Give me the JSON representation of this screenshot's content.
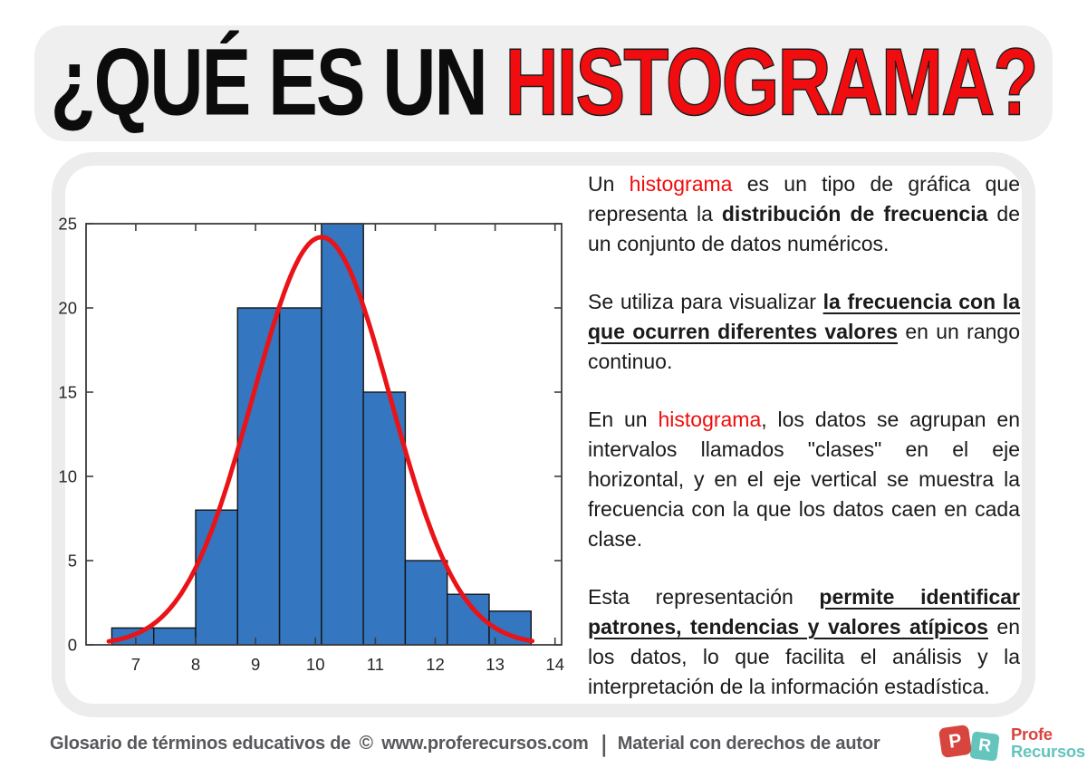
{
  "title": {
    "black_part": "¿QUÉ ES UN ",
    "red_part": "HISTOGRAMA?",
    "red_color": "#f10d0f"
  },
  "article": {
    "paragraphs": [
      {
        "runs": [
          {
            "t": "Un ",
            "s": "n"
          },
          {
            "t": "histograma",
            "s": "red"
          },
          {
            "t": " es un tipo de gráfica que representa la ",
            "s": "n"
          },
          {
            "t": "distribución de frecuencia",
            "s": "b"
          },
          {
            "t": " de un conjunto de datos numéricos.",
            "s": "n"
          }
        ]
      },
      {
        "runs": [
          {
            "t": "Se utiliza para visualizar ",
            "s": "n"
          },
          {
            "t": "la frecuencia con la que ocurren diferentes valores",
            "s": "bu"
          },
          {
            "t": " en un rango continuo.",
            "s": "n"
          }
        ]
      },
      {
        "runs": [
          {
            "t": "En un ",
            "s": "n"
          },
          {
            "t": "histograma",
            "s": "red"
          },
          {
            "t": ", los datos se agrupan en intervalos llamados \"clases\" en el eje horizontal, y en el eje vertical se muestra la frecuencia con la que los datos caen en cada clase.",
            "s": "n"
          }
        ]
      },
      {
        "runs": [
          {
            "t": "Esta representación ",
            "s": "n"
          },
          {
            "t": "permite identificar patrones, tendencias y valores atípicos",
            "s": "bu"
          },
          {
            "t": " en los datos, lo que facilita el análisis y la interpretación de la información estadística.",
            "s": "n"
          }
        ]
      }
    ],
    "red_word_color": "#f20a0a"
  },
  "chart_data": {
    "type": "bar",
    "subtype": "histogram-with-normal-curve",
    "title": "",
    "xlabel": "",
    "ylabel": "",
    "x_range": [
      6.17,
      14.11
    ],
    "y_range": [
      0,
      25
    ],
    "x_ticks": [
      7,
      8,
      9,
      10,
      11,
      12,
      13,
      14
    ],
    "y_ticks": [
      0,
      5,
      10,
      15,
      20,
      25
    ],
    "bin_start": 6.6,
    "bin_width": 0.7,
    "bin_edges": [
      6.6,
      7.3,
      8.0,
      8.7,
      9.4,
      10.1,
      10.8,
      11.5,
      12.2,
      12.9,
      13.6
    ],
    "counts": [
      1,
      1,
      8,
      20,
      20,
      25,
      15,
      5,
      3,
      2
    ],
    "curve": {
      "shape": "normal",
      "mean": 10.1,
      "sigma": 1.15,
      "amplitude": 24.2,
      "x_min": 6.55,
      "x_max": 13.62,
      "color": "#ea1317",
      "width": 5
    },
    "bar_color": "#3476bf",
    "bar_edge_color": "#141414",
    "axis_color": "#3c3c3c",
    "tick_label_color": "#262626",
    "grid": false,
    "legend": null
  },
  "footer": {
    "left_text": "Glosario de términos educativos de",
    "copyright": "©",
    "site": "www.proferecursos.com",
    "separator": "|",
    "right_text": "Material con derechos de autor"
  },
  "logo": {
    "letter_p": "P",
    "letter_r": "R",
    "word_top": "Profe",
    "word_bottom": "Recursos",
    "red": "#d8453e",
    "teal": "#64c5bc"
  }
}
